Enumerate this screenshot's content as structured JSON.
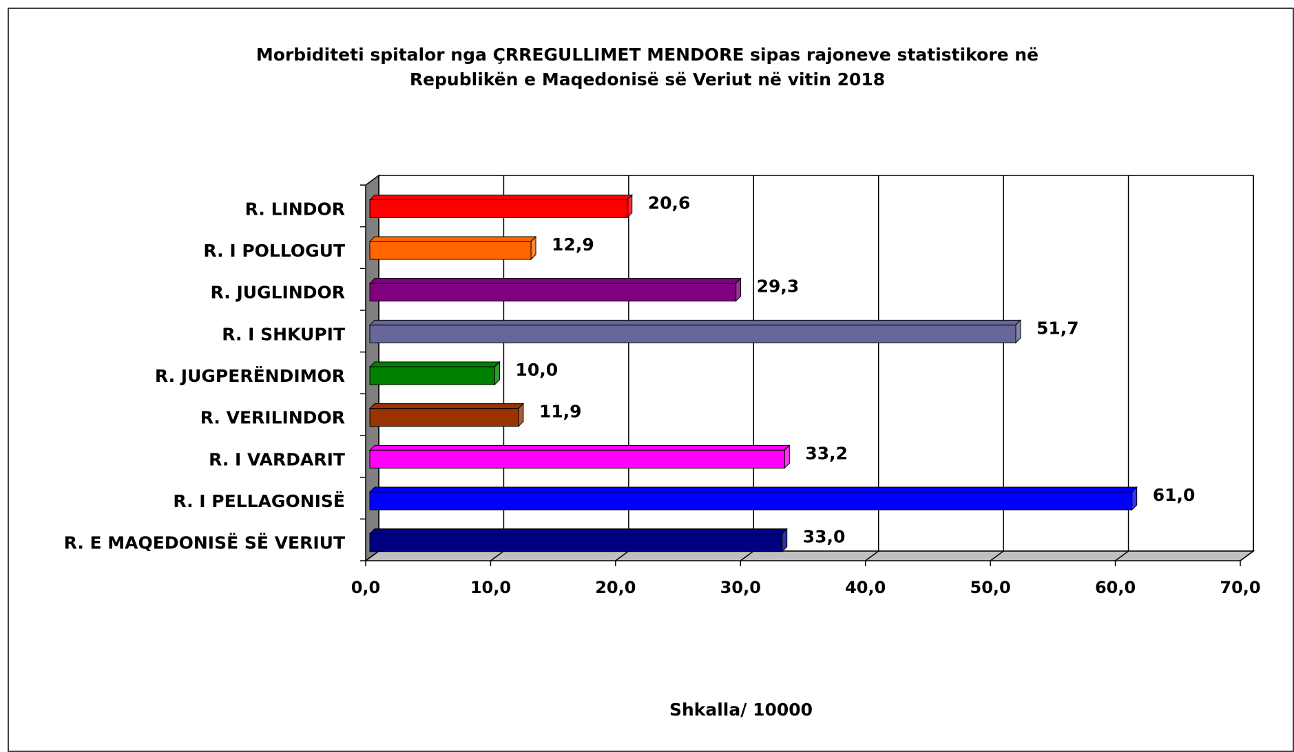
{
  "chart_data": {
    "type": "bar",
    "orientation": "horizontal",
    "title": "Morbiditeti spitalor nga ÇRREGULLIMET MENDORE sipas rajoneve statistikore në",
    "subtitle": "Republikën e Maqedonisë së Veriut në vitin 2018",
    "x_label": "Shkalla/ 10000",
    "categories": [
      "R. LINDOR",
      "R. I POLLOGUT",
      "R. JUGLINDOR",
      "R. I SHKUPIT",
      "R. JUGPERËNDIMOR",
      "R. VERILINDOR",
      "R. I VARDARIT",
      "R. I PELLAGONISË",
      "R. E MAQEDONISË SË VERIUT"
    ],
    "values": [
      20.6,
      12.9,
      29.3,
      51.7,
      10.0,
      11.9,
      33.2,
      61.0,
      33.0
    ],
    "value_labels": [
      "20,6",
      "12,9",
      "29,3",
      "51,7",
      "10,0",
      "11,9",
      "33,2",
      "61,0",
      "33,0"
    ],
    "colors": [
      "#ff0000",
      "#ff6600",
      "#800080",
      "#666699",
      "#008000",
      "#993300",
      "#ff00ff",
      "#0000ff",
      "#000080"
    ],
    "xlim": [
      0,
      70
    ],
    "xticks": [
      {
        "value": 0,
        "label": "0,0"
      },
      {
        "value": 10,
        "label": "10,0"
      },
      {
        "value": 20,
        "label": "20,0"
      },
      {
        "value": 30,
        "label": "30,0"
      },
      {
        "value": 40,
        "label": "40,0"
      },
      {
        "value": 50,
        "label": "50,0"
      },
      {
        "value": 60,
        "label": "60,0"
      },
      {
        "value": 70,
        "label": "70,0"
      }
    ],
    "grid": true
  }
}
